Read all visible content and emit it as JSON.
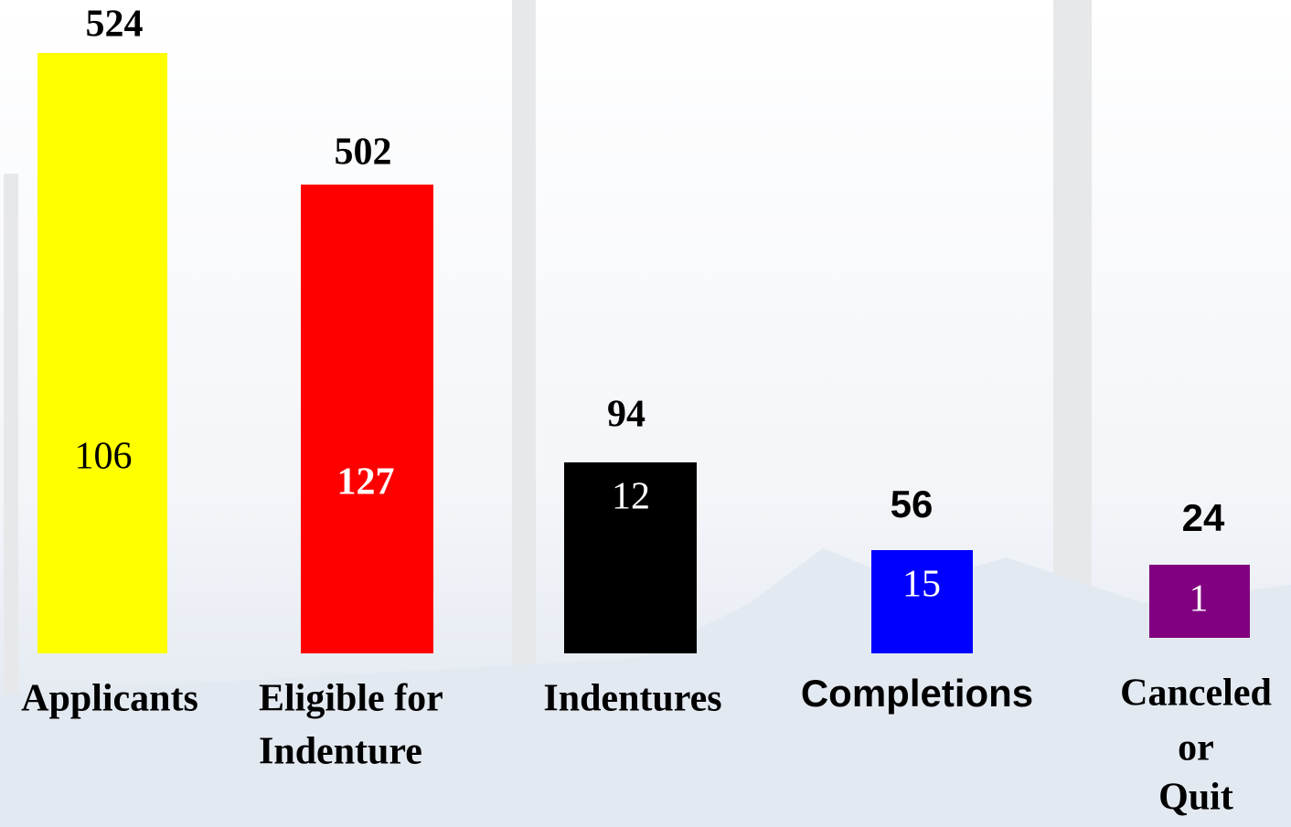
{
  "items": [
    {
      "total": "524",
      "inner": "106",
      "label": [
        "Applicants"
      ]
    },
    {
      "total": "502",
      "inner": "127",
      "label": [
        "Eligible for",
        "Indenture"
      ]
    },
    {
      "total": "94",
      "inner": "12",
      "label": [
        "Indentures"
      ]
    },
    {
      "total": "56",
      "inner": "15",
      "label": [
        "Completions"
      ]
    },
    {
      "total": "24",
      "inner": "1",
      "label": [
        "Canceled",
        "or",
        "Quit"
      ]
    }
  ]
}
